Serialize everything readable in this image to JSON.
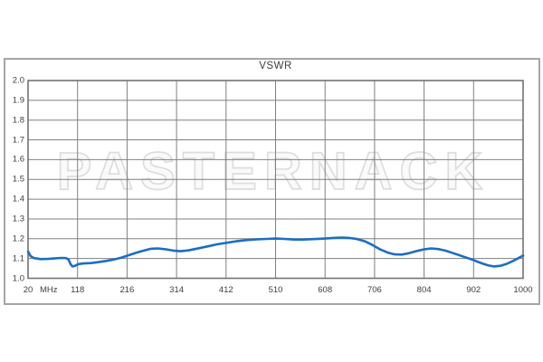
{
  "page": {
    "background_color": "#ffffff"
  },
  "frame": {
    "border_color": "#a6a6a6"
  },
  "watermark": {
    "text": "PASTERNACK",
    "fill_color": "#fafafa",
    "outline_color": "#dddddd"
  },
  "chart_data": {
    "type": "line",
    "title": "VSWR",
    "xlabel": "",
    "ylabel": "",
    "grid": true,
    "grid_color": "#808080",
    "border_color": "#737373",
    "x_axis": {
      "unit": "MHz",
      "min": 20,
      "max": 1000,
      "ticks": [
        20,
        118,
        216,
        314,
        412,
        510,
        608,
        706,
        804,
        902,
        1000
      ]
    },
    "y_axis": {
      "min": 1.0,
      "max": 2.0,
      "step": 0.1,
      "tick_labels": [
        "2.0",
        "1.9",
        "1.8",
        "1.7",
        "1.6",
        "1.5",
        "1.4",
        "1.3",
        "1.2",
        "1.1",
        "1.0"
      ]
    },
    "series": [
      {
        "name": "VSWR",
        "color": "#1b6ec2",
        "stroke_width": 2.6,
        "points": [
          [
            20,
            1.135
          ],
          [
            25,
            1.112
          ],
          [
            32,
            1.102
          ],
          [
            45,
            1.097
          ],
          [
            60,
            1.098
          ],
          [
            72,
            1.1
          ],
          [
            85,
            1.103
          ],
          [
            95,
            1.102
          ],
          [
            100,
            1.095
          ],
          [
            104,
            1.072
          ],
          [
            108,
            1.06
          ],
          [
            113,
            1.063
          ],
          [
            120,
            1.072
          ],
          [
            130,
            1.075
          ],
          [
            145,
            1.077
          ],
          [
            160,
            1.082
          ],
          [
            175,
            1.088
          ],
          [
            190,
            1.095
          ],
          [
            205,
            1.105
          ],
          [
            220,
            1.117
          ],
          [
            235,
            1.13
          ],
          [
            250,
            1.141
          ],
          [
            263,
            1.149
          ],
          [
            277,
            1.151
          ],
          [
            292,
            1.147
          ],
          [
            307,
            1.14
          ],
          [
            322,
            1.137
          ],
          [
            337,
            1.141
          ],
          [
            355,
            1.15
          ],
          [
            375,
            1.161
          ],
          [
            395,
            1.172
          ],
          [
            412,
            1.179
          ],
          [
            432,
            1.187
          ],
          [
            452,
            1.193
          ],
          [
            472,
            1.197
          ],
          [
            492,
            1.199
          ],
          [
            510,
            1.201
          ],
          [
            528,
            1.199
          ],
          [
            546,
            1.196
          ],
          [
            565,
            1.196
          ],
          [
            585,
            1.198
          ],
          [
            608,
            1.201
          ],
          [
            624,
            1.204
          ],
          [
            640,
            1.206
          ],
          [
            656,
            1.204
          ],
          [
            672,
            1.198
          ],
          [
            688,
            1.186
          ],
          [
            702,
            1.168
          ],
          [
            706,
            1.162
          ],
          [
            718,
            1.145
          ],
          [
            732,
            1.13
          ],
          [
            746,
            1.121
          ],
          [
            760,
            1.12
          ],
          [
            774,
            1.127
          ],
          [
            790,
            1.138
          ],
          [
            805,
            1.147
          ],
          [
            818,
            1.151
          ],
          [
            832,
            1.148
          ],
          [
            846,
            1.14
          ],
          [
            862,
            1.127
          ],
          [
            880,
            1.111
          ],
          [
            902,
            1.092
          ],
          [
            916,
            1.078
          ],
          [
            930,
            1.066
          ],
          [
            942,
            1.06
          ],
          [
            955,
            1.063
          ],
          [
            968,
            1.073
          ],
          [
            982,
            1.09
          ],
          [
            1000,
            1.115
          ]
        ]
      }
    ]
  }
}
